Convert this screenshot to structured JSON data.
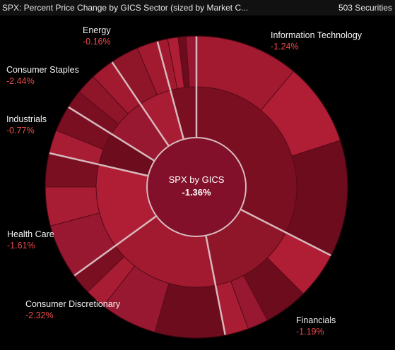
{
  "header": {
    "title": "SPX: Percent Price Change by GICS Sector (sized by Market C...",
    "count": "503 Securities"
  },
  "center": {
    "label": "SPX by GICS",
    "value": "-1.36%"
  },
  "colors": {
    "background": "#000000",
    "negative_text": "#f04a4a",
    "divider": "#d8b8bc"
  },
  "chart_data": {
    "type": "sunburst",
    "root": {
      "label": "SPX by GICS",
      "value": "-1.36%"
    },
    "sectors": [
      {
        "name": "Information Technology",
        "change": "-1.24%",
        "display_name": "Information Technology"
      },
      {
        "name": "Financials",
        "change": "-1.19%",
        "display_name": "Financials"
      },
      {
        "name": "Consumer Discretionary",
        "change": "-2.32%",
        "display_name": "Consumer Discretionary"
      },
      {
        "name": "Health Care",
        "change": "-1.61%",
        "display_name": "Health Care"
      },
      {
        "name": "Industrials",
        "change": "-0.77%",
        "display_name": "Industrials"
      },
      {
        "name": "Consumer Staples",
        "change": "-2.44%",
        "display_name": "Consumer Staples"
      },
      {
        "name": "Energy",
        "change": "-0.16%",
        "display_name": "Energy"
      }
    ]
  }
}
